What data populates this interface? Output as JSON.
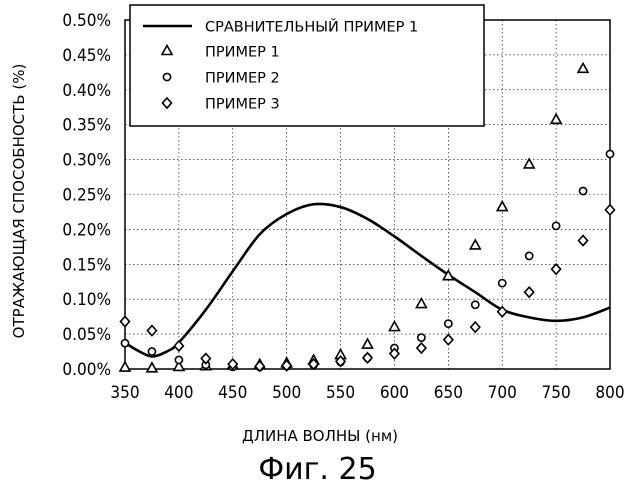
{
  "chart_data": {
    "type": "line",
    "title": "",
    "xlabel": "ДЛИНА ВОЛНЫ (нм)",
    "ylabel": "ОТРАЖАЮЩАЯ СПОСОБНОСТЬ (%)",
    "xlim": [
      350,
      800
    ],
    "ylim": [
      0.0,
      0.5
    ],
    "x_ticks": [
      "350",
      "400",
      "450",
      "500",
      "550",
      "600",
      "650",
      "700",
      "750",
      "800"
    ],
    "y_ticks": [
      "0.00%",
      "0.05%",
      "0.10%",
      "0.15%",
      "0.20%",
      "0.25%",
      "0.30%",
      "0.35%",
      "0.40%",
      "0.45%",
      "0.50%"
    ],
    "grid": true,
    "legend_position": "top-left",
    "series": [
      {
        "name": "СРАВНИТЕЛЬНЫЙ ПРИМЕР 1",
        "style": "line",
        "x": [
          350,
          360,
          375,
          390,
          400,
          425,
          450,
          475,
          500,
          525,
          550,
          575,
          600,
          625,
          650,
          675,
          700,
          725,
          750,
          775,
          800
        ],
        "y": [
          0.038,
          0.028,
          0.018,
          0.026,
          0.038,
          0.085,
          0.14,
          0.193,
          0.222,
          0.236,
          0.232,
          0.215,
          0.19,
          0.162,
          0.135,
          0.11,
          0.085,
          0.074,
          0.069,
          0.074,
          0.088
        ]
      },
      {
        "name": "ПРИМЕР 1",
        "style": "triangle",
        "x": [
          350,
          375,
          400,
          425,
          450,
          475,
          500,
          525,
          550,
          575,
          600,
          625,
          650,
          675,
          700,
          725,
          750,
          775
        ],
        "y": [
          0.002,
          0.001,
          0.003,
          0.004,
          0.005,
          0.006,
          0.008,
          0.012,
          0.02,
          0.035,
          0.06,
          0.093,
          0.133,
          0.177,
          0.232,
          0.293,
          0.357,
          0.43
        ]
      },
      {
        "name": "ПРИМЕР 2",
        "style": "circle",
        "x": [
          350,
          375,
          400,
          425,
          450,
          475,
          500,
          525,
          550,
          575,
          600,
          625,
          650,
          675,
          700,
          725,
          750,
          775,
          800
        ],
        "y": [
          0.037,
          0.025,
          0.013,
          0.006,
          0.003,
          0.003,
          0.004,
          0.006,
          0.01,
          0.016,
          0.03,
          0.045,
          0.065,
          0.092,
          0.123,
          0.162,
          0.205,
          0.255,
          0.308
        ]
      },
      {
        "name": "ПРИМЕР 3",
        "style": "diamond",
        "x": [
          350,
          375,
          400,
          425,
          450,
          475,
          500,
          525,
          550,
          575,
          600,
          625,
          650,
          675,
          700,
          725,
          750,
          775,
          800
        ],
        "y": [
          0.068,
          0.055,
          0.033,
          0.015,
          0.007,
          0.004,
          0.005,
          0.007,
          0.011,
          0.016,
          0.022,
          0.03,
          0.042,
          0.06,
          0.082,
          0.11,
          0.143,
          0.184,
          0.228
        ]
      }
    ]
  },
  "figure_caption": "Фиг. 25"
}
